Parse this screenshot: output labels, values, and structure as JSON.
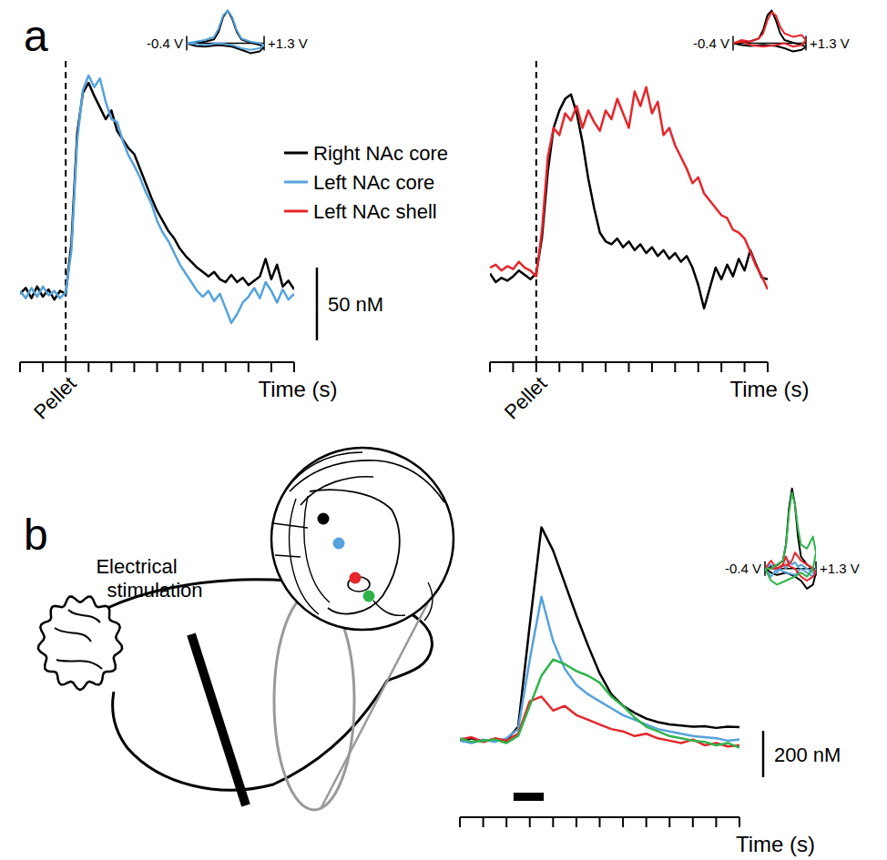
{
  "panel_labels": [
    "a",
    "b"
  ],
  "diagram": {
    "label": "Electrical stimulation"
  },
  "chart_data": [
    {
      "type": "line",
      "x_label": "Time (s)",
      "x": [
        -2,
        -1.75,
        -1.5,
        -1.25,
        -1,
        -0.75,
        -0.5,
        -0.25,
        0,
        0.25,
        0.5,
        0.75,
        1,
        1.25,
        1.5,
        1.75,
        2,
        2.25,
        2.5,
        2.75,
        3,
        3.25,
        3.5,
        3.75,
        4,
        4.25,
        4.5,
        4.75,
        5,
        5.25,
        5.5,
        5.75,
        6,
        6.25,
        6.5,
        6.75,
        7,
        7.25,
        7.5,
        7.75,
        8,
        8.25,
        8.5,
        8.75,
        9,
        9.25,
        9.5,
        9.75,
        10
      ],
      "xlim": [
        -2,
        10
      ],
      "xticks": [
        -2,
        -1,
        0,
        1,
        2,
        3,
        4,
        5,
        6,
        7,
        8,
        9,
        10
      ],
      "ylim": [
        -47,
        160
      ],
      "tick_labels": false,
      "legend": "right",
      "annotations": [
        {
          "x": 0,
          "text": "Pellet"
        }
      ],
      "scale_bar": {
        "value": 50,
        "label": "50 nM"
      },
      "series": [
        {
          "name": "Right NAc core",
          "color": "#000000",
          "values": [
            0,
            4,
            -3,
            5,
            -2,
            3,
            -4,
            2,
            0,
            35,
            110,
            138,
            145,
            136,
            128,
            120,
            126,
            112,
            106,
            100,
            96,
            86,
            76,
            66,
            57,
            50,
            43,
            38,
            31,
            26,
            22,
            18,
            15,
            12,
            15,
            10,
            8,
            13,
            8,
            11,
            6,
            9,
            12,
            24,
            10,
            20,
            5,
            9,
            3
          ]
        },
        {
          "name": "Left NAc core",
          "color": "#55a2dc",
          "values": [
            2,
            -3,
            4,
            -2,
            5,
            -1,
            2,
            -3,
            1,
            30,
            105,
            140,
            150,
            142,
            148,
            132,
            120,
            118,
            105,
            95,
            88,
            80,
            70,
            62,
            50,
            42,
            36,
            28,
            20,
            14,
            8,
            2,
            -2,
            2,
            -5,
            0,
            -10,
            -20,
            -14,
            -6,
            -2,
            4,
            -3,
            8,
            2,
            -6,
            3,
            -4,
            0
          ]
        }
      ]
    },
    {
      "type": "line",
      "x_label": "Time (s)",
      "x": [
        -2,
        -1.75,
        -1.5,
        -1.25,
        -1,
        -0.75,
        -0.5,
        -0.25,
        0,
        0.25,
        0.5,
        0.75,
        1,
        1.25,
        1.5,
        1.75,
        2,
        2.25,
        2.5,
        2.75,
        3,
        3.25,
        3.5,
        3.75,
        4,
        4.25,
        4.5,
        4.75,
        5,
        5.25,
        5.5,
        5.75,
        6,
        6.25,
        6.5,
        6.75,
        7,
        7.25,
        7.5,
        7.75,
        8,
        8.25,
        8.5,
        8.75,
        9,
        9.25,
        9.5,
        9.75,
        10
      ],
      "xlim": [
        -2,
        10
      ],
      "xticks": [
        -2,
        -1,
        0,
        1,
        2,
        3,
        4,
        5,
        6,
        7,
        8,
        9,
        10
      ],
      "ylim": [
        -61,
        146
      ],
      "tick_labels": false,
      "annotations": [
        {
          "x": 0,
          "text": "Pellet"
        }
      ],
      "series": [
        {
          "name": "Right NAc core",
          "color": "#000000",
          "values": [
            0,
            -6,
            -3,
            -5,
            -2,
            2,
            -1,
            -4,
            0,
            25,
            70,
            100,
            112,
            120,
            123,
            110,
            90,
            65,
            45,
            28,
            22,
            20,
            24,
            18,
            22,
            16,
            20,
            14,
            18,
            12,
            16,
            10,
            14,
            8,
            12,
            4,
            -8,
            -24,
            -10,
            4,
            -4,
            6,
            -2,
            10,
            2,
            16,
            6,
            -3,
            -4
          ]
        },
        {
          "name": "Left NAc shell",
          "color": "#e5262b",
          "values": [
            4,
            6,
            2,
            5,
            3,
            8,
            4,
            2,
            -2,
            30,
            80,
            100,
            95,
            110,
            105,
            115,
            100,
            112,
            104,
            98,
            112,
            106,
            120,
            110,
            100,
            125,
            115,
            128,
            110,
            118,
            95,
            100,
            88,
            80,
            72,
            62,
            66,
            55,
            50,
            45,
            40,
            38,
            30,
            28,
            24,
            15,
            5,
            -2,
            -11
          ]
        }
      ]
    },
    {
      "type": "line",
      "x_label": "Time (s)",
      "x": [
        0,
        0.5,
        1,
        1.5,
        2,
        2.5,
        3,
        3.5,
        4,
        4.5,
        5,
        5.5,
        6,
        6.5,
        7,
        7.5,
        8,
        8.5,
        9,
        9.5,
        10,
        10.5,
        11,
        11.5,
        12
      ],
      "xlim": [
        0,
        12
      ],
      "xticks": [
        0,
        1,
        2,
        3,
        4,
        5,
        6,
        7,
        8,
        9,
        10,
        11,
        12
      ],
      "ylim": [
        -330,
        1000
      ],
      "tick_labels": false,
      "stimulation": [
        2.3,
        3.6
      ],
      "scale_bar": {
        "value": 200,
        "label": "200 nM"
      },
      "series": [
        {
          "color": "#000000",
          "values": [
            0,
            10,
            -5,
            8,
            0,
            60,
            500,
            920,
            820,
            680,
            540,
            410,
            290,
            200,
            150,
            120,
            95,
            80,
            70,
            65,
            60,
            62,
            55,
            60,
            58
          ]
        },
        {
          "color": "#55a2dc",
          "values": [
            0,
            -10,
            5,
            -5,
            10,
            50,
            350,
            620,
            430,
            310,
            240,
            200,
            170,
            140,
            110,
            90,
            70,
            50,
            40,
            30,
            20,
            15,
            10,
            0,
            5
          ]
        },
        {
          "color": "#e5262b",
          "values": [
            5,
            15,
            -5,
            10,
            0,
            30,
            170,
            190,
            130,
            150,
            110,
            90,
            70,
            50,
            40,
            20,
            30,
            10,
            0,
            -10,
            5,
            -20,
            -10,
            -25,
            -20
          ]
        },
        {
          "color": "#2fb44b",
          "values": [
            10,
            -5,
            0,
            5,
            -10,
            20,
            150,
            280,
            350,
            330,
            300,
            280,
            250,
            190,
            150,
            100,
            60,
            40,
            20,
            10,
            0,
            -5,
            -20,
            -10,
            -30
          ]
        }
      ]
    },
    {
      "type": "line",
      "x": [
        -0.4,
        -0.2,
        0,
        0.2,
        0.3,
        0.4,
        0.5,
        0.6,
        0.7,
        0.8,
        1.0,
        1.2,
        1.3,
        1.2,
        1.0,
        0.8,
        0.6,
        0.3,
        0,
        -0.2,
        -0.4
      ],
      "xlim": [
        -0.4,
        1.3
      ],
      "xticks": [
        {
          "value": -0.4,
          "label": "-0.4 V"
        },
        {
          "value": 1.3,
          "label": "+1.3 V"
        }
      ],
      "ylim": [
        -0.4,
        1.1
      ],
      "tick_labels": "x",
      "series": [
        {
          "color": "#000000",
          "values": [
            0,
            0.02,
            0.05,
            0.12,
            0.35,
            0.8,
            1.0,
            0.75,
            0.35,
            0.12,
            0.02,
            -0.05,
            -0.1,
            -0.25,
            -0.3,
            -0.2,
            -0.1,
            -0.05,
            -0.1,
            -0.08,
            0
          ]
        },
        {
          "color": "#55a2dc",
          "values": [
            0,
            0.05,
            0.1,
            0.2,
            0.45,
            0.85,
            1.0,
            0.8,
            0.4,
            0.15,
            0.05,
            0,
            -0.05,
            -0.15,
            -0.2,
            -0.15,
            -0.05,
            0,
            -0.05,
            -0.02,
            0
          ]
        }
      ]
    },
    {
      "type": "line",
      "x": [
        -0.4,
        -0.2,
        0,
        0.2,
        0.3,
        0.4,
        0.5,
        0.6,
        0.7,
        0.8,
        1.0,
        1.2,
        1.3,
        1.2,
        1.0,
        0.8,
        0.6,
        0.3,
        0,
        -0.2,
        -0.4
      ],
      "xlim": [
        -0.4,
        1.3
      ],
      "xticks": [
        {
          "value": -0.4,
          "label": "-0.4 V"
        },
        {
          "value": 1.3,
          "label": "+1.3 V"
        }
      ],
      "ylim": [
        -0.4,
        1.1
      ],
      "tick_labels": "x",
      "series": [
        {
          "color": "#000000",
          "values": [
            0,
            0.03,
            0.06,
            0.15,
            0.4,
            0.85,
            1.0,
            0.7,
            0.3,
            0.1,
            0.02,
            -0.05,
            -0.1,
            -0.2,
            -0.25,
            -0.15,
            -0.08,
            -0.05,
            -0.08,
            -0.05,
            0
          ]
        },
        {
          "color": "#e5262b",
          "values": [
            0,
            0.1,
            0.05,
            0.15,
            0.3,
            0.7,
            0.95,
            0.85,
            0.5,
            0.3,
            0.2,
            0.25,
            0.1,
            -0.05,
            -0.1,
            0,
            -0.05,
            -0.1,
            -0.05,
            0.05,
            0
          ]
        }
      ]
    },
    {
      "type": "line",
      "x": [
        -0.4,
        -0.2,
        0,
        0.2,
        0.3,
        0.4,
        0.5,
        0.6,
        0.7,
        0.8,
        1.0,
        1.2,
        1.3,
        1.2,
        1.0,
        0.8,
        0.6,
        0.3,
        0,
        -0.2,
        -0.4
      ],
      "xlim": [
        -0.4,
        1.3
      ],
      "xticks": [
        {
          "value": -0.4,
          "label": "-0.4 V"
        },
        {
          "value": 1.3,
          "label": "+1.3 V"
        }
      ],
      "ylim": [
        -0.4,
        1.1
      ],
      "tick_labels": "x",
      "series": [
        {
          "color": "#000000",
          "values": [
            0,
            0.02,
            0.04,
            0.1,
            0.3,
            0.75,
            1.0,
            0.8,
            0.4,
            0.15,
            0.05,
            0,
            -0.05,
            -0.2,
            -0.25,
            -0.15,
            -0.1,
            -0.05,
            -0.08,
            -0.05,
            0
          ]
        },
        {
          "color": "#55a2dc",
          "values": [
            0,
            0.05,
            -0.05,
            0.05,
            0,
            0.1,
            0.05,
            0.08,
            0.02,
            0.05,
            0,
            -0.05,
            0,
            -0.1,
            -0.05,
            0,
            -0.08,
            -0.05,
            0,
            -0.1,
            0
          ]
        },
        {
          "color": "#e5262b",
          "values": [
            0,
            0.1,
            0,
            0.05,
            0.15,
            0.05,
            0.1,
            0.2,
            0.15,
            0.1,
            0.05,
            0,
            -0.05,
            -0.1,
            -0.15,
            -0.1,
            0,
            0.05,
            0,
            0,
            0
          ]
        },
        {
          "color": "#2fb44b",
          "values": [
            0,
            0,
            0.05,
            0.1,
            0.3,
            0.7,
            0.95,
            0.8,
            0.5,
            0.3,
            0.25,
            0.4,
            0.2,
            0,
            -0.1,
            -0.05,
            -0.1,
            -0.15,
            -0.2,
            -0.15,
            0
          ]
        }
      ]
    }
  ]
}
